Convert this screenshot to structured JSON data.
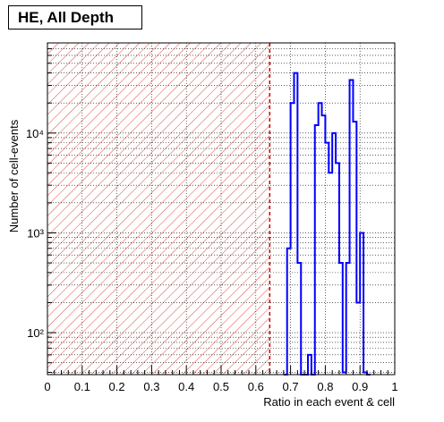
{
  "chart_data": {
    "type": "histogram",
    "title": "HE, All Depth",
    "xlabel": "Ratio in each event & cell",
    "ylabel": "Number of cell-events",
    "xlim": [
      0,
      1
    ],
    "ylog": true,
    "ylim": [
      38,
      80000
    ],
    "x_ticks": [
      0,
      0.1,
      0.2,
      0.3,
      0.4,
      0.5,
      0.6,
      0.7,
      0.8,
      0.9,
      1
    ],
    "x_tick_labels": [
      "0",
      "0.1",
      "0.2",
      "0.3",
      "0.4",
      "0.5",
      "0.6",
      "0.7",
      "0.8",
      "0.9",
      "1"
    ],
    "y_ticks": [
      100,
      1000,
      10000
    ],
    "y_tick_labels": [
      "10²",
      "10³",
      "10⁴"
    ],
    "grid": true,
    "threshold_line": 0.64,
    "shaded_region": [
      0,
      0.64
    ],
    "bin_width": 0.01,
    "histogram": {
      "bins_x0": [
        0.68,
        0.69,
        0.7,
        0.71,
        0.72,
        0.73,
        0.74,
        0.75,
        0.76,
        0.77,
        0.78,
        0.79,
        0.8,
        0.81,
        0.82,
        0.83,
        0.84,
        0.85,
        0.86,
        0.87,
        0.88,
        0.89,
        0.9,
        0.91,
        0.92
      ],
      "values": [
        0,
        700,
        20000,
        40000,
        500,
        0,
        0,
        60,
        0,
        12000,
        20000,
        15000,
        8000,
        4000,
        10000,
        5000,
        500,
        40,
        500,
        34000,
        13000,
        200,
        1000,
        40,
        0
      ]
    },
    "colors": {
      "histogram": "#0000ff",
      "threshold": "#cc0000",
      "hatch": "#cc0000"
    }
  }
}
